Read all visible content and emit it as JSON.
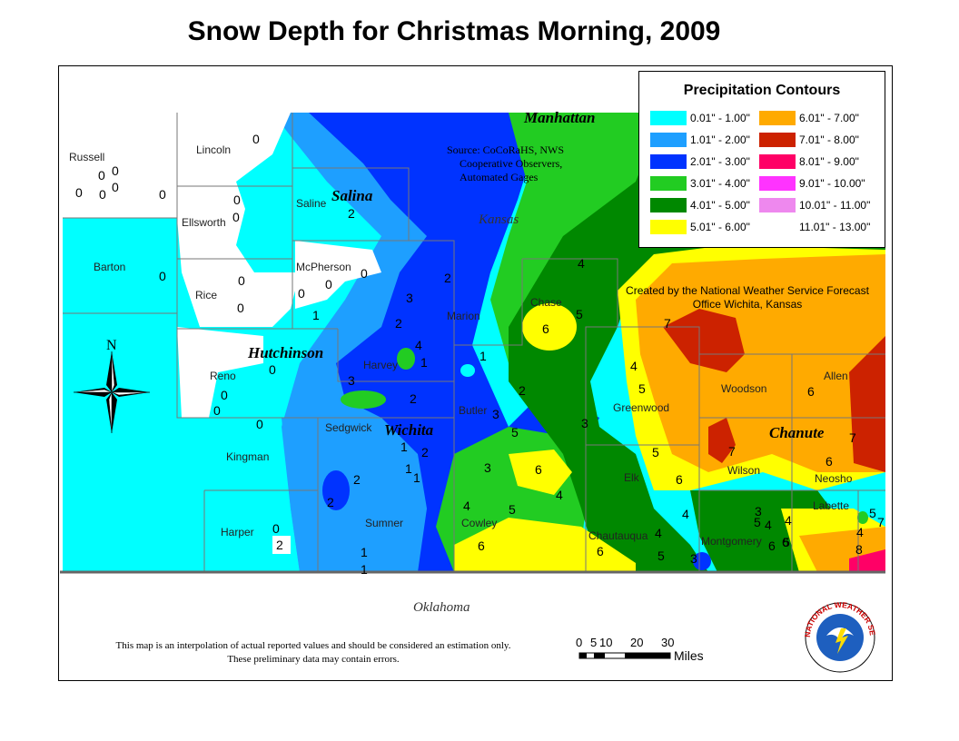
{
  "title": "Snow Depth for Christmas Morning, 2009",
  "legend": {
    "title": "Precipitation Contours",
    "items": [
      {
        "label": "0.01\" - 1.00\"",
        "color": "#00ffff"
      },
      {
        "label": "1.01\" - 2.00\"",
        "color": "#1e9fff"
      },
      {
        "label": "2.01\" - 3.00\"",
        "color": "#0033ff"
      },
      {
        "label": "3.01\" - 4.00\"",
        "color": "#22cc22"
      },
      {
        "label": "4.01\" - 5.00\"",
        "color": "#008800"
      },
      {
        "label": "5.01\" - 6.00\"",
        "color": "#ffff00"
      },
      {
        "label": "6.01\" - 7.00\"",
        "color": "#ffaa00"
      },
      {
        "label": "7.01\" - 8.00\"",
        "color": "#cc2200"
      },
      {
        "label": "8.01\" - 9.00\"",
        "color": "#ff0066"
      },
      {
        "label": "9.01\" - 10.00\"",
        "color": "#ff33ff"
      },
      {
        "label": "10.01\" - 11.00\"",
        "color": "#ee88ee"
      },
      {
        "label": "11.01\" - 13.00\"",
        "color": "#ffffff"
      }
    ]
  },
  "source": [
    "Source: CoCoRaHS, NWS",
    "Cooperative Observers,",
    "Automated Gages"
  ],
  "created": [
    "Created by the National Weather Service Forecast",
    "Office Wichita, Kansas"
  ],
  "disclaimer": [
    "This map is an interpolation of actual reported values and should be estimation only.",
    "These preliminary data may contain errors."
  ],
  "disclaimer_full": "This map is an interpolation of actual reported values and should be considered an estimation only.",
  "scale": {
    "ticks": [
      "0",
      "5",
      "10",
      "20",
      "30"
    ],
    "unit": "Miles"
  },
  "north_label": "N",
  "nws_logo_text": "NATIONAL WEATHER SERVICE",
  "states": {
    "kansas": "Kansas",
    "oklahoma": "Oklahoma"
  },
  "cities": [
    "Manhattan",
    "Salina",
    "Hutchinson",
    "Wichita",
    "Chanute"
  ],
  "counties": [
    "Russell",
    "Lincoln",
    "Ellsworth",
    "Saline",
    "Barton",
    "Rice",
    "McPherson",
    "Reno",
    "Harvey",
    "Marion",
    "Chase",
    "Sedgwick",
    "Butler",
    "Greenwood",
    "Woodson",
    "Allen",
    "Kingman",
    "Harper",
    "Sumner",
    "Cowley",
    "Elk",
    "Wilson",
    "Neosho",
    "Labette",
    "Chautauqua",
    "Montgomery"
  ],
  "observations": [
    "0",
    "0",
    "0",
    "0",
    "0",
    "0",
    "0",
    "0",
    "0",
    "0",
    "0",
    "0",
    "0",
    "0",
    "0",
    "0",
    "0",
    "0",
    "0",
    "0",
    "1",
    "1",
    "1",
    "1",
    "1",
    "1",
    "1",
    "1",
    "2",
    "2",
    "2",
    "2",
    "2",
    "2",
    "2",
    "2",
    "2",
    "3",
    "3",
    "3",
    "3",
    "3",
    "3",
    "3",
    "4",
    "4",
    "4",
    "4",
    "4",
    "4",
    "4",
    "4",
    "4",
    "4",
    "5",
    "5",
    "5",
    "5",
    "5",
    "5",
    "5",
    "5",
    "5",
    "6",
    "6",
    "6",
    "6",
    "6",
    "6",
    "6",
    "6",
    "6",
    "7",
    "7",
    "7",
    "7",
    "8"
  ]
}
